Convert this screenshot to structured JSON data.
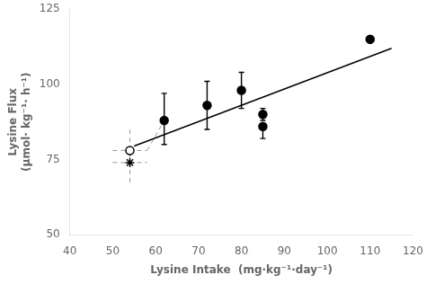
{
  "chart_data": {
    "type": "scatter",
    "xlabel": "Lysine Intake  (mg·kg⁻¹·day⁻¹)",
    "ylabel": "Lysine Flux\n(μmol· kg⁻¹· h⁻¹)",
    "xlim": [
      40,
      120
    ],
    "ylim": [
      50,
      125
    ],
    "xticks": [
      40,
      50,
      60,
      70,
      80,
      90,
      100,
      110,
      120
    ],
    "yticks": [
      50,
      75,
      100,
      125
    ],
    "grid": false,
    "series": [
      {
        "type": "line",
        "line_style": "dashed",
        "color": "#999999",
        "x": [
          54,
          54
        ],
        "values": [
          85,
          67
        ]
      },
      {
        "type": "line",
        "line_style": "dashed",
        "color": "#999999",
        "x": [
          50,
          58
        ],
        "values": [
          78,
          78
        ]
      },
      {
        "type": "line",
        "line_style": "dashed",
        "color": "#999999",
        "x": [
          50,
          58
        ],
        "values": [
          74,
          74
        ]
      },
      {
        "type": "line",
        "line_style": "dashed",
        "color": "#999999",
        "x": [
          58,
          62
        ],
        "values": [
          78,
          88
        ]
      },
      {
        "type": "line",
        "line_style": "solid",
        "color": "#000000",
        "x": [
          55,
          115
        ],
        "values": [
          79.5,
          112
        ]
      },
      {
        "type": "scatter",
        "marker": "circle",
        "color": "#000000",
        "x": [
          62,
          72,
          80,
          85,
          85,
          110
        ],
        "values": [
          88,
          93,
          98,
          90,
          86,
          115
        ],
        "error_up": [
          9,
          8,
          6,
          2,
          0,
          0
        ],
        "error_down": [
          8,
          8,
          6,
          2,
          4,
          0
        ]
      },
      {
        "type": "scatter",
        "marker": "open_circle",
        "color": "#000000",
        "x": [
          54
        ],
        "values": [
          78
        ]
      },
      {
        "type": "scatter",
        "marker": "star",
        "color": "#000000",
        "x": [
          54
        ],
        "values": [
          74
        ]
      }
    ]
  }
}
